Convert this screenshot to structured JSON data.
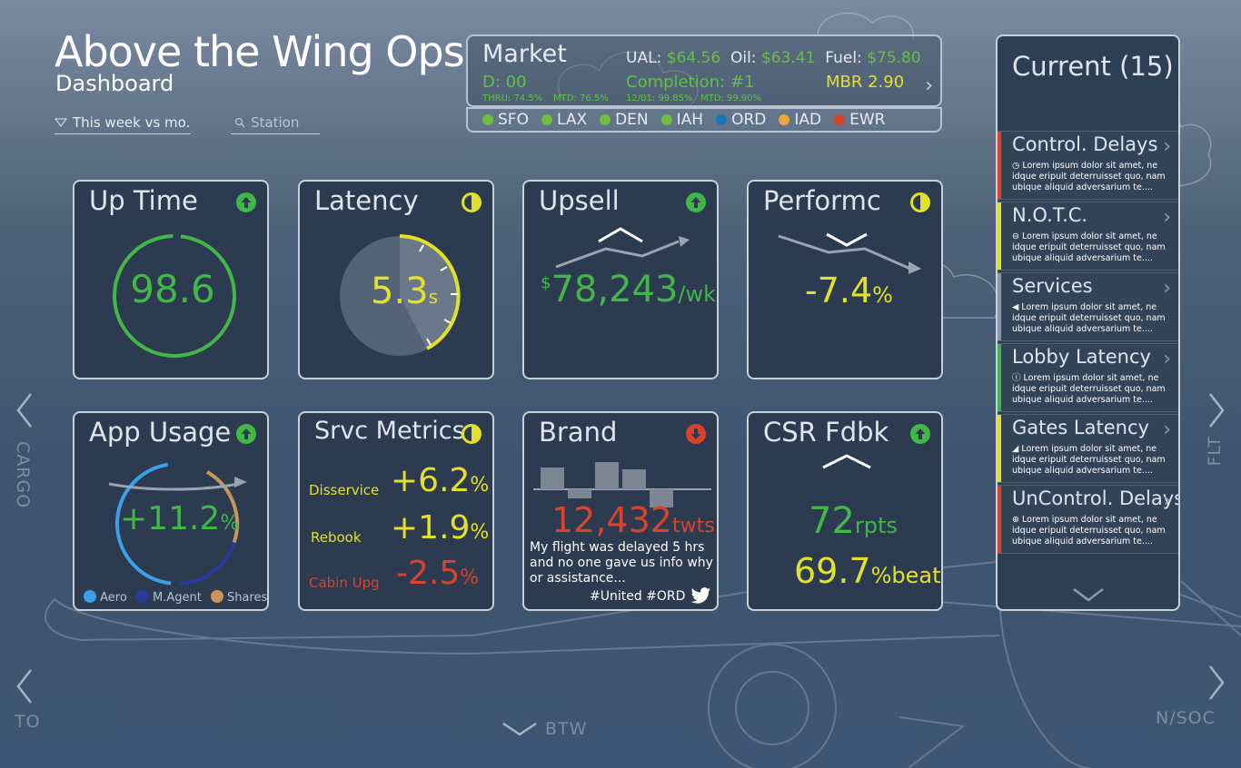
{
  "header": {
    "title": "Above the Wing Ops",
    "subtitle": "Dashboard",
    "filter_label": "This week vs mo.",
    "search_placeholder": "Station"
  },
  "market": {
    "title": "Market",
    "d_label": "D: 00",
    "thru": "THRU: 74.5%",
    "mtd1": "MTD: 76.5%",
    "date_stat": "12/01: 99.85%",
    "mtd2": "MTD: 99.90%",
    "ual_label": "UAL:",
    "ual_value": "$64.56",
    "oil_label": "Oil:",
    "oil_value": "$63.41",
    "fuel_label": "Fuel:",
    "fuel_value": "$75.80",
    "completion": "Completion: #1",
    "mbr": "MBR 2.90"
  },
  "stations": [
    {
      "code": "SFO",
      "color": "#6fbf3f"
    },
    {
      "code": "LAX",
      "color": "#6fbf3f"
    },
    {
      "code": "DEN",
      "color": "#6fbf3f"
    },
    {
      "code": "IAH",
      "color": "#6fbf3f"
    },
    {
      "code": "ORD",
      "color": "#1b75bb"
    },
    {
      "code": "IAD",
      "color": "#f0a33a"
    },
    {
      "code": "EWR",
      "color": "#d9432d"
    }
  ],
  "cards": {
    "uptime": {
      "title": "Up Time",
      "value": "98.6",
      "status": "up",
      "progress": 0.98
    },
    "latency": {
      "title": "Latency",
      "value": "5.3",
      "unit": "s",
      "status": "half"
    },
    "upsell": {
      "title": "Upsell",
      "currency": "$",
      "value": "78,243",
      "unit": "/wk",
      "status": "up"
    },
    "performc": {
      "title": "Performc",
      "value": "-7.4",
      "unit": "%",
      "status": "half"
    },
    "app_usage": {
      "title": "App Usage",
      "value": "+11.2",
      "unit": "%",
      "status": "up",
      "legend": [
        {
          "label": "Aero",
          "color": "#3aa0e8"
        },
        {
          "label": "M.Agent",
          "color": "#2b3a9a"
        },
        {
          "label": "Shares",
          "color": "#c8955a"
        }
      ]
    },
    "srvc_metrics": {
      "title": "Srvc Metrics",
      "status": "half",
      "rows": [
        {
          "label": "Disservice",
          "value": "+6.2",
          "unit": "%"
        },
        {
          "label": "Rebook",
          "value": "+1.9",
          "unit": "%"
        },
        {
          "label": "Cabin Upg",
          "value": "-2.5",
          "unit": "%"
        }
      ]
    },
    "brand": {
      "title": "Brand",
      "status": "down",
      "value": "12,432",
      "unit": "twts",
      "tweet": "My flight was delayed 5 hrs and no one gave us info why or assistance...",
      "tags": "#United #ORD"
    },
    "csr_fdbk": {
      "title": "CSR Fdbk",
      "status": "up",
      "reports": "72",
      "reports_unit": "rpts",
      "beat": "69.7",
      "beat_unit": "%beat"
    }
  },
  "panel": {
    "title": "Current (15)",
    "items": [
      {
        "name": "Control. Delays",
        "color": "#d9432d",
        "desc": "Lorem ipsum dolor sit amet, ne idque eripuit deterruisset quo, nam ubique aliquid adversarium te...."
      },
      {
        "name": "N.O.T.C.",
        "color": "#e2e02a",
        "desc": "Lorem ipsum dolor sit amet, ne idque eripuit deterruisset quo, nam ubique aliquid adversarium te...."
      },
      {
        "name": "Services",
        "color": "#8a98aa",
        "desc": "Lorem ipsum dolor sit amet, ne idque eripuit deterruisset quo, nam ubique aliquid adversarium te...."
      },
      {
        "name": "Lobby Latency",
        "color": "#43b649",
        "desc": "Lorem ipsum dolor sit amet, ne idque eripuit deterruisset quo, nam ubique aliquid adversarium te...."
      },
      {
        "name": "Gates Latency",
        "color": "#e2e02a",
        "desc": "Lorem ipsum dolor sit amet, ne idque eripuit deterruisset quo, nam ubique aliquid adversarium te...."
      },
      {
        "name": "UnControl. Delays",
        "color": "#d9432d",
        "desc": "Lorem ipsum dolor sit amet, ne idque eripuit deterruisset quo, nam ubique aliquid adversarium te...."
      }
    ]
  },
  "nav": {
    "left_top": "CARGO",
    "right_top": "FLT",
    "left_bottom": "TO",
    "right_bottom": "N/SOC",
    "bottom": "BTW"
  }
}
